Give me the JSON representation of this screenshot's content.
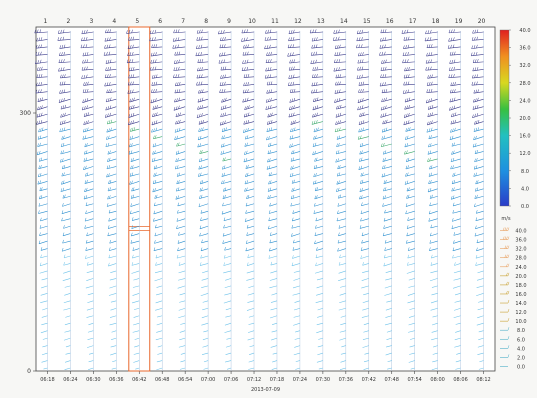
{
  "chart_data": {
    "type": "wind-barb profile",
    "title": "",
    "xlabel": "2013-07-09",
    "ylabel": "",
    "column_labels": [
      "1",
      "2",
      "3",
      "4",
      "5",
      "6",
      "7",
      "8",
      "9",
      "10",
      "11",
      "12",
      "13",
      "14",
      "15",
      "16",
      "17",
      "18",
      "19",
      "20"
    ],
    "x_tick_labels": [
      "06:18",
      "06:24",
      "06:30",
      "06:36",
      "06:42",
      "06:48",
      "06:54",
      "07:00",
      "07:06",
      "07:12",
      "07:18",
      "07:24",
      "07:30",
      "07:36",
      "07:42",
      "07:48",
      "07:54",
      "08:00",
      "08:06",
      "08:12"
    ],
    "y_tick_labels": [
      "0",
      "300"
    ],
    "y_range": [
      0,
      400
    ],
    "highlighted_column": 5,
    "colorbar": {
      "ticks": [
        "0.0",
        "4.0",
        "8.0",
        "12.0",
        "16.0",
        "20.0",
        "24.0",
        "28.0",
        "32.0",
        "36.0",
        "40.0"
      ],
      "range": [
        0,
        40
      ]
    },
    "speed_legend": {
      "unit": "m/s",
      "values": [
        "0.0",
        "2.0",
        "4.0",
        "6.0",
        "8.0",
        "10.0",
        "12.0",
        "14.0",
        "16.0",
        "18.0",
        "20.0",
        "24.0",
        "28.0",
        "32.0",
        "36.0",
        "40.0"
      ]
    },
    "colors": {
      "low": "#6fc3ea",
      "mid": "#2b8fcf",
      "high": "#3a3a8a",
      "highlight": "#e8682e"
    }
  }
}
